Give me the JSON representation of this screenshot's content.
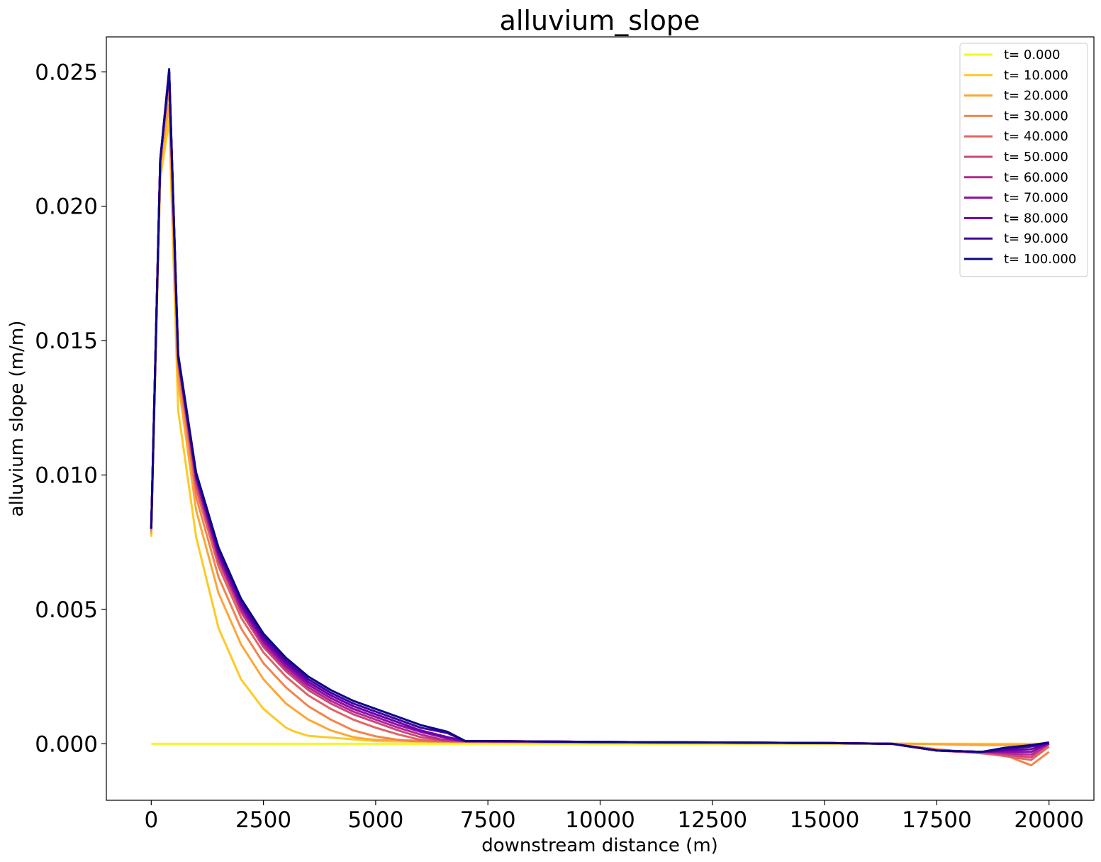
{
  "chart_data": {
    "type": "line",
    "title": "alluvium_slope",
    "xlabel": "downstream distance (m)",
    "ylabel": "alluvium slope (m/m)",
    "xlim": [
      -1000,
      21000
    ],
    "ylim": [
      -0.0021,
      0.0263
    ],
    "xticks": [
      0,
      2500,
      5000,
      7500,
      10000,
      12500,
      15000,
      17500,
      20000
    ],
    "xtick_labels": [
      "0",
      "2500",
      "5000",
      "7500",
      "10000",
      "12500",
      "15000",
      "17500",
      "20000"
    ],
    "yticks": [
      0.0,
      0.005,
      0.01,
      0.015,
      0.02,
      0.025
    ],
    "ytick_labels": [
      "0.000",
      "0.005",
      "0.010",
      "0.015",
      "0.020",
      "0.025"
    ],
    "grid": false,
    "legend_position": "top-right",
    "series": [
      {
        "name": "t= 0.000",
        "color": "#f0f921",
        "x": [
          0,
          2500,
          5000,
          7500,
          10000,
          12500,
          15000,
          17500,
          20000
        ],
        "y": [
          0,
          0,
          0,
          0,
          0,
          0,
          0,
          0,
          0
        ]
      },
      {
        "name": "t= 10.000",
        "color": "#fdca26",
        "x": [
          0,
          200,
          400,
          600,
          1000,
          1500,
          2000,
          2500,
          3000,
          3200,
          3500,
          5000,
          7500,
          10000,
          12500,
          15000,
          17500,
          19000,
          20000
        ],
        "y": [
          0.0077,
          0.021,
          0.0232,
          0.0124,
          0.0077,
          0.0043,
          0.0024,
          0.0013,
          0.0006,
          0.00045,
          0.0003,
          0.0001,
          5e-05,
          3e-05,
          2e-05,
          1e-05,
          0.0,
          0.0,
          0.0
        ]
      },
      {
        "name": "t= 20.000",
        "color": "#fca636",
        "x": [
          0,
          200,
          400,
          600,
          1000,
          1500,
          2000,
          2500,
          3000,
          3500,
          4000,
          4500,
          4800,
          5000,
          7500,
          10000,
          12500,
          15000,
          17000,
          18500,
          19500,
          20000
        ],
        "y": [
          0.0078,
          0.0214,
          0.0238,
          0.0135,
          0.0087,
          0.0056,
          0.0037,
          0.0024,
          0.0015,
          0.0009,
          0.0005,
          0.00025,
          0.00018,
          0.00015,
          8e-05,
          5e-05,
          3e-05,
          2e-05,
          0.0,
          -5e-05,
          -5e-05,
          0.0
        ]
      },
      {
        "name": "t= 30.000",
        "color": "#f2844b",
        "x": [
          0,
          200,
          400,
          600,
          1000,
          1500,
          2000,
          2500,
          3000,
          3500,
          4000,
          4500,
          5000,
          5500,
          5800,
          7500,
          10000,
          12500,
          15000,
          16500,
          17500,
          18500,
          19000,
          19300,
          19600,
          20000
        ],
        "y": [
          0.0079,
          0.0216,
          0.0245,
          0.014,
          0.0092,
          0.0062,
          0.0043,
          0.003,
          0.0021,
          0.0014,
          0.0009,
          0.0005,
          0.00028,
          0.00015,
          0.0001,
          7e-05,
          5e-05,
          4e-05,
          3e-05,
          0.0,
          -0.0002,
          -0.00035,
          -0.0004,
          -0.0006,
          -0.0008,
          -0.0003
        ]
      },
      {
        "name": "t= 40.000",
        "color": "#e16462",
        "x": [
          0,
          200,
          400,
          600,
          1000,
          1500,
          2000,
          2500,
          3000,
          3500,
          4000,
          4500,
          5000,
          5500,
          6000,
          6300,
          7500,
          10000,
          12500,
          15000,
          16500,
          17500,
          18500,
          19000,
          19600,
          20000
        ],
        "y": [
          0.008,
          0.0217,
          0.0248,
          0.0142,
          0.0095,
          0.0066,
          0.0047,
          0.0034,
          0.0025,
          0.0018,
          0.0013,
          0.0009,
          0.0006,
          0.00035,
          0.00015,
          0.0001,
          8e-05,
          6e-05,
          5e-05,
          3e-05,
          0.0,
          -0.00025,
          -0.00035,
          -0.00045,
          -0.0006,
          -0.0001
        ]
      },
      {
        "name": "t= 50.000",
        "color": "#cc4778",
        "x": [
          0,
          200,
          400,
          600,
          1000,
          1500,
          2000,
          2500,
          3000,
          3500,
          4000,
          4500,
          5000,
          5500,
          6000,
          6500,
          6800,
          7500,
          10000,
          12500,
          15000,
          16500,
          17500,
          18500,
          19000,
          19600,
          20000
        ],
        "y": [
          0.008,
          0.0217,
          0.025,
          0.0143,
          0.0097,
          0.0068,
          0.0049,
          0.0036,
          0.0027,
          0.002,
          0.0015,
          0.0011,
          0.0008,
          0.0005,
          0.00025,
          0.00012,
          0.0001,
          9e-05,
          7e-05,
          5e-05,
          3e-05,
          0.0,
          -0.00025,
          -0.0003,
          -0.0004,
          -0.0005,
          0.0
        ]
      },
      {
        "name": "t= 60.000",
        "color": "#b12a90",
        "x": [
          0,
          200,
          400,
          600,
          1000,
          1500,
          2000,
          2500,
          3000,
          3500,
          4000,
          4500,
          5000,
          5500,
          6000,
          6500,
          7000,
          7500,
          10000,
          12500,
          15000,
          16500,
          17500,
          18500,
          19000,
          19600,
          20000
        ],
        "y": [
          0.008,
          0.0217,
          0.025,
          0.0143,
          0.0098,
          0.0069,
          0.005,
          0.0037,
          0.0028,
          0.0021,
          0.0016,
          0.0012,
          0.0009,
          0.0006,
          0.00035,
          0.00015,
          0.0001,
          0.0001,
          7e-05,
          5e-05,
          3e-05,
          0.0,
          -0.00025,
          -0.0003,
          -0.00035,
          -0.0004,
          0.0
        ]
      },
      {
        "name": "t= 70.000",
        "color": "#8f0da4",
        "x": [
          0,
          200,
          400,
          600,
          1000,
          1500,
          2000,
          2500,
          3000,
          3500,
          4000,
          4500,
          5000,
          5500,
          6000,
          6600,
          7000,
          7500,
          10000,
          12500,
          15000,
          16500,
          17500,
          18500,
          19000,
          19600,
          20000
        ],
        "y": [
          0.008,
          0.0217,
          0.025,
          0.0144,
          0.0099,
          0.007,
          0.0051,
          0.0038,
          0.0029,
          0.0022,
          0.0017,
          0.0013,
          0.001,
          0.0007,
          0.00045,
          0.0002,
          0.0001,
          0.0001,
          7e-05,
          5e-05,
          3e-05,
          0.0,
          -0.00025,
          -0.0003,
          -0.0003,
          -0.0003,
          2e-05
        ]
      },
      {
        "name": "t= 80.000",
        "color": "#6a00a8",
        "x": [
          0,
          200,
          400,
          600,
          1000,
          1500,
          2000,
          2500,
          3000,
          3500,
          4000,
          4500,
          5000,
          5500,
          6000,
          6600,
          7000,
          7500,
          10000,
          12500,
          15000,
          16500,
          17500,
          18500,
          19000,
          19600,
          20000
        ],
        "y": [
          0.008,
          0.0217,
          0.025,
          0.0144,
          0.01,
          0.0071,
          0.0052,
          0.0039,
          0.003,
          0.0023,
          0.0018,
          0.0014,
          0.0011,
          0.0008,
          0.0005,
          0.00025,
          0.0001,
          0.0001,
          7e-05,
          5e-05,
          3e-05,
          0.0,
          -0.00025,
          -0.0003,
          -0.00025,
          -0.0002,
          3e-05
        ]
      },
      {
        "name": "t= 90.000",
        "color": "#41049d",
        "x": [
          0,
          200,
          400,
          600,
          1000,
          1500,
          2000,
          2500,
          3000,
          3500,
          4000,
          4500,
          5000,
          5500,
          6000,
          6600,
          7000,
          7500,
          10000,
          12500,
          15000,
          16500,
          17500,
          18500,
          19000,
          19600,
          20000
        ],
        "y": [
          0.008,
          0.0217,
          0.025,
          0.0144,
          0.01,
          0.0072,
          0.0053,
          0.004,
          0.0031,
          0.0024,
          0.0019,
          0.0015,
          0.0012,
          0.0009,
          0.0006,
          0.0004,
          0.0001,
          0.0001,
          7e-05,
          5e-05,
          3e-05,
          0.0,
          -0.00025,
          -0.0003,
          -0.0002,
          -0.0001,
          4e-05
        ]
      },
      {
        "name": "t= 100.000",
        "color": "#0d0887",
        "x": [
          0,
          200,
          400,
          600,
          1000,
          1500,
          2000,
          2500,
          3000,
          3500,
          4000,
          4500,
          5000,
          5500,
          6000,
          6600,
          7000,
          7500,
          10000,
          12500,
          15000,
          16500,
          17500,
          18500,
          19000,
          19600,
          20000
        ],
        "y": [
          0.008,
          0.0217,
          0.0251,
          0.0145,
          0.0101,
          0.0073,
          0.0054,
          0.0041,
          0.0032,
          0.0025,
          0.002,
          0.0016,
          0.0013,
          0.001,
          0.0007,
          0.00045,
          0.0001,
          0.0001,
          7e-05,
          5e-05,
          3e-05,
          0.0,
          -0.00025,
          -0.0003,
          -0.00015,
          -5e-05,
          5e-05
        ]
      }
    ]
  }
}
